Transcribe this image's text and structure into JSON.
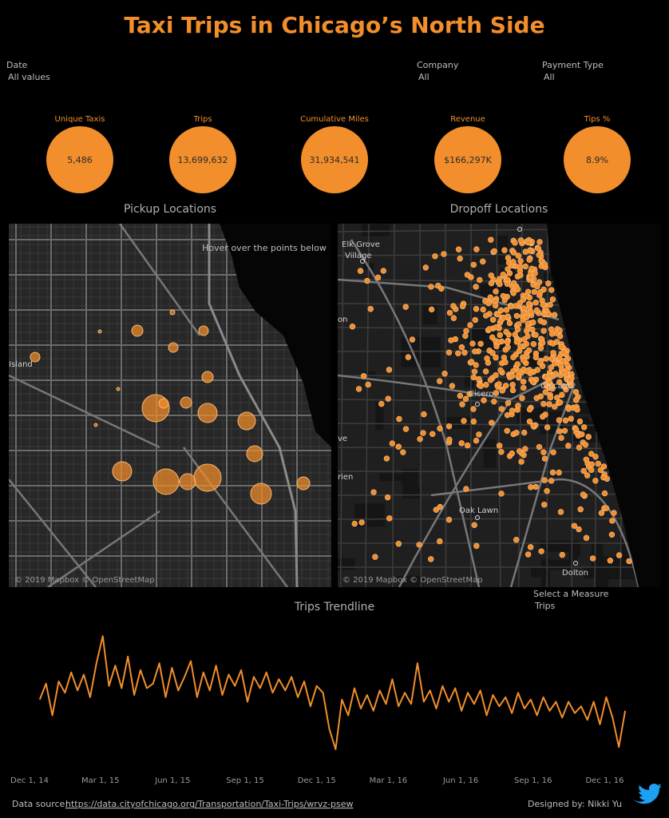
{
  "header": {
    "title": "Taxi Trips in Chicago’s North Side"
  },
  "filters": [
    {
      "label": "Date",
      "value": "All values"
    },
    {
      "label": "Company",
      "value": "All"
    },
    {
      "label": "Payment Type",
      "value": "All"
    }
  ],
  "kpis": [
    {
      "label": "Unique Taxis",
      "value": "5,486"
    },
    {
      "label": "Trips",
      "value": "13,699,632"
    },
    {
      "label": "Cumulative Miles",
      "value": "31,934,541"
    },
    {
      "label": "Revenue",
      "value": "$166,297K"
    },
    {
      "label": "Tips %",
      "value": "8.9%"
    }
  ],
  "maps": [
    {
      "title": "Pickup Locations",
      "hint": "Hover over the points below",
      "places": [
        "Island"
      ],
      "attribution": "© 2019 Mapbox © OpenStreetMap"
    },
    {
      "title": "Dropoff Locations",
      "places": [
        "Elk Grove",
        "Village",
        "on",
        "Cicero",
        "Chicago",
        "ve",
        "rien",
        "Oak Lawn",
        "Dolton"
      ],
      "attribution": "© 2019 Mapbox © OpenStreetMap"
    }
  ],
  "measure_selector": {
    "label": "Select a Measure",
    "value": "Trips"
  },
  "chart_data": {
    "type": "line",
    "title": "Trips Trendline",
    "color": "#f28e2b",
    "x": [
      "2014-12-14",
      "2014-12-22",
      "2014-12-30",
      "2015-01-07",
      "2015-01-15",
      "2015-01-23",
      "2015-01-31",
      "2015-02-08",
      "2015-02-16",
      "2015-02-24",
      "2015-03-04",
      "2015-03-12",
      "2015-03-20",
      "2015-03-28",
      "2015-04-05",
      "2015-04-13",
      "2015-04-21",
      "2015-04-29",
      "2015-05-07",
      "2015-05-15",
      "2015-05-23",
      "2015-05-31",
      "2015-06-08",
      "2015-06-16",
      "2015-06-24",
      "2015-07-02",
      "2015-07-10",
      "2015-07-18",
      "2015-07-26",
      "2015-08-03",
      "2015-08-11",
      "2015-08-19",
      "2015-08-27",
      "2015-09-04",
      "2015-09-12",
      "2015-09-20",
      "2015-09-28",
      "2015-10-06",
      "2015-10-14",
      "2015-10-22",
      "2015-10-30",
      "2015-11-07",
      "2015-11-15",
      "2015-11-23",
      "2015-12-01",
      "2015-12-09",
      "2015-12-17",
      "2015-12-25",
      "2016-01-02",
      "2016-01-10",
      "2016-01-18",
      "2016-01-26",
      "2016-02-03",
      "2016-02-11",
      "2016-02-19",
      "2016-02-27",
      "2016-03-06",
      "2016-03-14",
      "2016-03-22",
      "2016-03-30",
      "2016-04-07",
      "2016-04-15",
      "2016-04-23",
      "2016-05-01",
      "2016-05-09",
      "2016-05-17",
      "2016-05-25",
      "2016-06-02",
      "2016-06-10",
      "2016-06-18",
      "2016-06-26",
      "2016-07-04",
      "2016-07-12",
      "2016-07-20",
      "2016-07-28",
      "2016-08-05",
      "2016-08-13",
      "2016-08-21",
      "2016-08-29",
      "2016-09-06",
      "2016-09-14",
      "2016-09-22",
      "2016-09-30",
      "2016-10-08",
      "2016-10-16",
      "2016-10-24",
      "2016-11-01",
      "2016-11-09",
      "2016-11-17",
      "2016-11-25",
      "2016-12-03",
      "2016-12-11",
      "2016-12-19",
      "2016-12-27"
    ],
    "values": [
      19000,
      22500,
      15500,
      23000,
      20500,
      25000,
      21000,
      24500,
      19500,
      27000,
      33000,
      22000,
      26500,
      21500,
      28500,
      20000,
      25500,
      21500,
      22500,
      27000,
      19500,
      26000,
      21000,
      24000,
      27500,
      19500,
      25000,
      21000,
      26500,
      20000,
      24500,
      22000,
      25500,
      18500,
      24000,
      21500,
      25000,
      20500,
      23500,
      21000,
      24000,
      19500,
      23000,
      17500,
      22000,
      20500,
      12500,
      8000,
      19000,
      15500,
      21500,
      17000,
      20000,
      16500,
      21000,
      18000,
      23500,
      17500,
      20500,
      18000,
      27000,
      18500,
      21000,
      17000,
      22000,
      18500,
      21500,
      16500,
      20500,
      18000,
      21000,
      15500,
      20000,
      17500,
      19500,
      16000,
      20500,
      17000,
      19000,
      15500,
      19500,
      16500,
      18500,
      15000,
      18500,
      16000,
      17500,
      14500,
      18500,
      13500,
      19500,
      15000,
      8500,
      16500
    ],
    "xlim": [
      "2014-12-01",
      "2017-01-02"
    ],
    "ylim": [
      5000,
      35000
    ],
    "xticks": [
      {
        "value": "2014-12-01",
        "label": "Dec 1, 14"
      },
      {
        "value": "2015-03-01",
        "label": "Mar 1, 15"
      },
      {
        "value": "2015-06-01",
        "label": "Jun 1, 15"
      },
      {
        "value": "2015-09-01",
        "label": "Sep 1, 15"
      },
      {
        "value": "2015-12-01",
        "label": "Dec 1, 15"
      },
      {
        "value": "2016-03-01",
        "label": "Mar 1, 16"
      },
      {
        "value": "2016-06-01",
        "label": "Jun 1, 16"
      },
      {
        "value": "2016-09-01",
        "label": "Sep 1, 16"
      },
      {
        "value": "2016-12-01",
        "label": "Dec 1, 16"
      }
    ],
    "grid": false
  },
  "footer": {
    "source_label": "Data source:",
    "source_url": "https://data.cityofchicago.org/Transportation/Taxi-Trips/wrvz-psew",
    "credit": "Designed by: Nikki Yu"
  }
}
